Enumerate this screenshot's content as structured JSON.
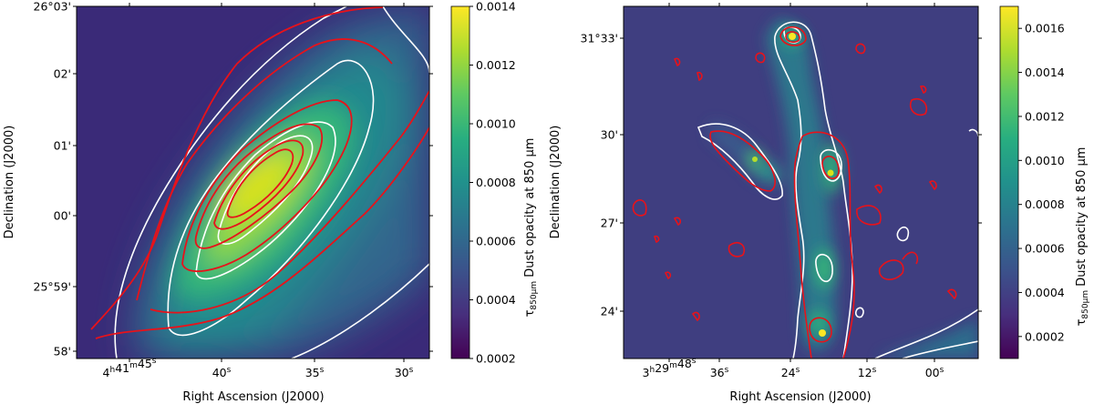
{
  "chart_data": [
    {
      "type": "heatmap",
      "panel": "left",
      "xlabel": "Right Ascension (J2000)",
      "ylabel": "Declination (J2000)",
      "x_ticks": [
        {
          "pre": "4",
          "h": "h",
          "mid": "41",
          "m": "m",
          "post": "45",
          "s": "s"
        },
        {
          "pre": "",
          "h": "",
          "mid": "",
          "m": "",
          "post": "40",
          "s": "s"
        },
        {
          "pre": "",
          "h": "",
          "mid": "",
          "m": "",
          "post": "35",
          "s": "s"
        },
        {
          "pre": "",
          "h": "",
          "mid": "",
          "m": "",
          "post": "30",
          "s": "s"
        }
      ],
      "y_ticks": [
        "26°03'",
        "02'",
        "01'",
        "00'",
        "25°59'",
        "58'"
      ],
      "colorbar": {
        "label_symbol": "τ",
        "label_sub": "850μm",
        "label_text": " Dust opacity at 850 μm",
        "ticks": [
          "0.0014",
          "0.0012",
          "0.0010",
          "0.0008",
          "0.0006",
          "0.0004",
          "0.0002"
        ],
        "range": [
          0.0002,
          0.0014
        ],
        "colormap": "viridis"
      },
      "contours": {
        "white": "dust opacity",
        "red": "overlay"
      }
    },
    {
      "type": "heatmap",
      "panel": "right",
      "xlabel": "Right Ascension (J2000)",
      "ylabel": "Declination (J2000)",
      "x_ticks": [
        {
          "pre": "3",
          "h": "h",
          "mid": "29",
          "m": "m",
          "post": "48",
          "s": "s"
        },
        {
          "pre": "",
          "h": "",
          "mid": "",
          "m": "",
          "post": "36",
          "s": "s"
        },
        {
          "pre": "",
          "h": "",
          "mid": "",
          "m": "",
          "post": "24",
          "s": "s"
        },
        {
          "pre": "",
          "h": "",
          "mid": "",
          "m": "",
          "post": "12",
          "s": "s"
        },
        {
          "pre": "",
          "h": "",
          "mid": "",
          "m": "",
          "post": "00",
          "s": "s"
        }
      ],
      "y_ticks": [
        "31°33'",
        "30'",
        "27'",
        "24'"
      ],
      "colorbar": {
        "label_symbol": "τ",
        "label_sub": "850μm",
        "label_text": " Dust opacity at 850 μm",
        "ticks": [
          "0.0016",
          "0.0014",
          "0.0012",
          "0.0010",
          "0.0008",
          "0.0006",
          "0.0004",
          "0.0002"
        ],
        "range": [
          0.0001,
          0.0017
        ],
        "colormap": "viridis"
      },
      "contours": {
        "white": "dust opacity",
        "red": "overlay"
      }
    }
  ]
}
